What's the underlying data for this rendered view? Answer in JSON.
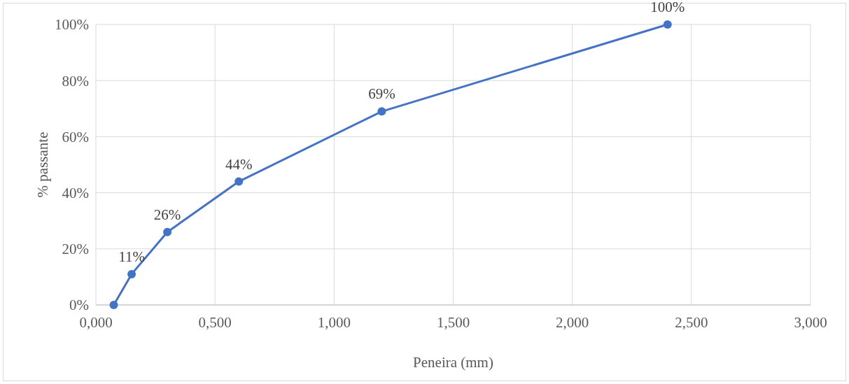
{
  "chart_data": {
    "type": "line",
    "xlabel": "Peneira (mm)",
    "ylabel": "% passante",
    "x": [
      0.075,
      0.15,
      0.3,
      0.6,
      1.2,
      2.4
    ],
    "series": [
      {
        "color": "#4472c4",
        "values": [
          0,
          11,
          26,
          44,
          69,
          100
        ],
        "value_labels": [
          null,
          "11%",
          "26%",
          "44%",
          "69%",
          "100%"
        ]
      }
    ],
    "xlim": [
      0,
      3
    ],
    "xticks": [
      {
        "value": 0,
        "label": "0,000"
      },
      {
        "value": 0.5,
        "label": "0,500"
      },
      {
        "value": 1,
        "label": "1,000"
      },
      {
        "value": 1.5,
        "label": "1,500"
      },
      {
        "value": 2,
        "label": "2,000"
      },
      {
        "value": 2.5,
        "label": "2,500"
      },
      {
        "value": 3,
        "label": "3,000"
      }
    ],
    "ylim": [
      0,
      100
    ],
    "yticks": [
      {
        "value": 0,
        "label": "0%"
      },
      {
        "value": 20,
        "label": "20%"
      },
      {
        "value": 40,
        "label": "40%"
      },
      {
        "value": 60,
        "label": "60%"
      },
      {
        "value": 80,
        "label": "80%"
      },
      {
        "value": 100,
        "label": "100%"
      }
    ],
    "grid": true,
    "marker": "circle",
    "line_style": "solid"
  }
}
